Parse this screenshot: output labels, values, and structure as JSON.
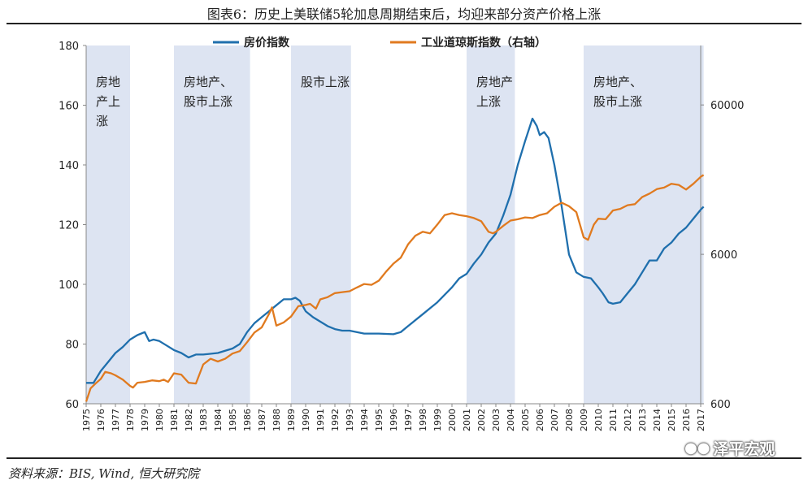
{
  "title": "图表6：历史上美联储5轮加息周期结束后，均迎来部分资产价格上涨",
  "source": "资料来源：BIS, Wind, 恒大研究院",
  "watermark": "泽平宏观",
  "watermark_icon": "wechat-icon",
  "colors": {
    "house": "#1f6fad",
    "dow": "#e07a1f",
    "band": "#dde4f2"
  },
  "chart_data": {
    "type": "line",
    "legend": [
      "房价指数",
      "工业道琼斯指数（右轴）"
    ],
    "legend_position": "top",
    "grid": false,
    "x_ticks": [
      "1975",
      "1976",
      "1977",
      "1978",
      "1979",
      "1980",
      "1981",
      "1982",
      "1983",
      "1984",
      "1985",
      "1986",
      "1987",
      "1988",
      "1989",
      "1990",
      "1991",
      "1992",
      "1993",
      "1994",
      "1995",
      "1996",
      "1997",
      "1998",
      "1999",
      "2000",
      "2001",
      "2002",
      "2003",
      "2004",
      "2005",
      "2006",
      "2007",
      "2008",
      "2009",
      "2010",
      "2011",
      "2012",
      "2013",
      "2014",
      "2015",
      "2016",
      "2017"
    ],
    "xlim": [
      1975,
      2017
    ],
    "left_axis": {
      "ticks": [
        "60",
        "80",
        "100",
        "120",
        "140",
        "160",
        "180"
      ],
      "ylim": [
        60,
        180
      ]
    },
    "right_axis": {
      "scale": "log",
      "ticks": [
        "600",
        "6000",
        "60000"
      ],
      "ylim": [
        600,
        150000
      ]
    },
    "bands": [
      {
        "start": 1975.0,
        "end": 1978.0,
        "label_lines": [
          "房地",
          "产上",
          "涨"
        ]
      },
      {
        "start": 1981.0,
        "end": 1986.2,
        "label_lines": [
          "房地产、",
          "股市上涨"
        ]
      },
      {
        "start": 1989.0,
        "end": 1993.1,
        "label_lines": [
          "股市上涨"
        ]
      },
      {
        "start": 2001.0,
        "end": 2004.3,
        "label_lines": [
          "房地产",
          "上涨"
        ]
      },
      {
        "start": 2009.0,
        "end": 2017.2,
        "label_lines": [
          "房地产、",
          "股市上涨"
        ]
      }
    ],
    "series": [
      {
        "name": "房价指数",
        "axis": "left",
        "points": [
          [
            1975.0,
            67
          ],
          [
            1975.5,
            67
          ],
          [
            1976.0,
            71
          ],
          [
            1976.5,
            74
          ],
          [
            1977.0,
            77
          ],
          [
            1977.5,
            79
          ],
          [
            1978.0,
            81.5
          ],
          [
            1978.5,
            83
          ],
          [
            1979.0,
            84
          ],
          [
            1979.3,
            81
          ],
          [
            1979.6,
            81.5
          ],
          [
            1980.0,
            81
          ],
          [
            1980.5,
            79.5
          ],
          [
            1981.0,
            78
          ],
          [
            1981.5,
            77
          ],
          [
            1982.0,
            75.5
          ],
          [
            1982.5,
            76.5
          ],
          [
            1983.0,
            76.5
          ],
          [
            1984.0,
            77
          ],
          [
            1985.0,
            78.5
          ],
          [
            1985.5,
            80
          ],
          [
            1986.0,
            84
          ],
          [
            1986.5,
            87
          ],
          [
            1987.0,
            89
          ],
          [
            1987.5,
            91
          ],
          [
            1988.0,
            93
          ],
          [
            1988.5,
            95
          ],
          [
            1989.0,
            95
          ],
          [
            1989.3,
            95.5
          ],
          [
            1989.6,
            94.5
          ],
          [
            1990.0,
            91
          ],
          [
            1990.5,
            89
          ],
          [
            1991.0,
            87.5
          ],
          [
            1991.5,
            86
          ],
          [
            1992.0,
            85
          ],
          [
            1992.5,
            84.5
          ],
          [
            1993.0,
            84.5
          ],
          [
            1994.0,
            83.5
          ],
          [
            1995.0,
            83.5
          ],
          [
            1996.0,
            83.3
          ],
          [
            1996.5,
            84
          ],
          [
            1997.0,
            86
          ],
          [
            1998.0,
            90
          ],
          [
            1999.0,
            94
          ],
          [
            2000.0,
            99
          ],
          [
            2000.5,
            102
          ],
          [
            2001.0,
            103.5
          ],
          [
            2001.5,
            107
          ],
          [
            2002.0,
            110
          ],
          [
            2002.5,
            114
          ],
          [
            2003.0,
            117
          ],
          [
            2003.5,
            123
          ],
          [
            2004.0,
            130
          ],
          [
            2004.5,
            140
          ],
          [
            2005.0,
            148
          ],
          [
            2005.5,
            155.5
          ],
          [
            2005.8,
            153
          ],
          [
            2006.0,
            150
          ],
          [
            2006.3,
            151
          ],
          [
            2006.6,
            149
          ],
          [
            2007.0,
            140
          ],
          [
            2007.5,
            126
          ],
          [
            2008.0,
            110
          ],
          [
            2008.5,
            104
          ],
          [
            2009.0,
            102.5
          ],
          [
            2009.5,
            102
          ],
          [
            2010.0,
            99
          ],
          [
            2010.3,
            97
          ],
          [
            2010.7,
            94
          ],
          [
            2011.0,
            93.5
          ],
          [
            2011.5,
            94
          ],
          [
            2012.0,
            97
          ],
          [
            2012.5,
            100
          ],
          [
            2013.0,
            104
          ],
          [
            2013.5,
            108
          ],
          [
            2014.0,
            108
          ],
          [
            2014.5,
            112
          ],
          [
            2015.0,
            114
          ],
          [
            2015.5,
            117
          ],
          [
            2016.0,
            119
          ],
          [
            2016.5,
            122
          ],
          [
            2017.0,
            125
          ],
          [
            2017.2,
            126
          ]
        ]
      },
      {
        "name": "工业道琼斯指数（右轴）",
        "axis": "right",
        "points": [
          [
            1975.0,
            620
          ],
          [
            1975.3,
            760
          ],
          [
            1975.7,
            830
          ],
          [
            1976.0,
            880
          ],
          [
            1976.3,
            980
          ],
          [
            1976.7,
            960
          ],
          [
            1977.0,
            930
          ],
          [
            1977.5,
            870
          ],
          [
            1978.0,
            790
          ],
          [
            1978.2,
            770
          ],
          [
            1978.5,
            830
          ],
          [
            1979.0,
            840
          ],
          [
            1979.5,
            860
          ],
          [
            1980.0,
            850
          ],
          [
            1980.3,
            870
          ],
          [
            1980.6,
            840
          ],
          [
            1981.0,
            960
          ],
          [
            1981.5,
            940
          ],
          [
            1982.0,
            830
          ],
          [
            1982.5,
            820
          ],
          [
            1983.0,
            1100
          ],
          [
            1983.5,
            1200
          ],
          [
            1984.0,
            1150
          ],
          [
            1984.5,
            1200
          ],
          [
            1985.0,
            1300
          ],
          [
            1985.5,
            1350
          ],
          [
            1986.0,
            1550
          ],
          [
            1986.5,
            1800
          ],
          [
            1987.0,
            1950
          ],
          [
            1987.5,
            2400
          ],
          [
            1987.7,
            2650
          ],
          [
            1988.0,
            2000
          ],
          [
            1988.5,
            2100
          ],
          [
            1989.0,
            2300
          ],
          [
            1989.5,
            2700
          ],
          [
            1990.0,
            2750
          ],
          [
            1990.3,
            2800
          ],
          [
            1990.7,
            2600
          ],
          [
            1991.0,
            3000
          ],
          [
            1991.5,
            3100
          ],
          [
            1992.0,
            3300
          ],
          [
            1992.5,
            3350
          ],
          [
            1993.0,
            3400
          ],
          [
            1993.5,
            3600
          ],
          [
            1994.0,
            3800
          ],
          [
            1994.5,
            3750
          ],
          [
            1995.0,
            4000
          ],
          [
            1995.5,
            4600
          ],
          [
            1996.0,
            5200
          ],
          [
            1996.5,
            5700
          ],
          [
            1997.0,
            7000
          ],
          [
            1997.5,
            8000
          ],
          [
            1998.0,
            8500
          ],
          [
            1998.5,
            8300
          ],
          [
            1999.0,
            9500
          ],
          [
            1999.5,
            11000
          ],
          [
            2000.0,
            11300
          ],
          [
            2000.5,
            11000
          ],
          [
            2001.0,
            10800
          ],
          [
            2001.5,
            10500
          ],
          [
            2002.0,
            10000
          ],
          [
            2002.5,
            8500
          ],
          [
            2002.8,
            8300
          ],
          [
            2003.0,
            8500
          ],
          [
            2003.5,
            9300
          ],
          [
            2004.0,
            10100
          ],
          [
            2004.5,
            10300
          ],
          [
            2005.0,
            10600
          ],
          [
            2005.5,
            10500
          ],
          [
            2006.0,
            11000
          ],
          [
            2006.5,
            11300
          ],
          [
            2007.0,
            12500
          ],
          [
            2007.5,
            13300
          ],
          [
            2008.0,
            12600
          ],
          [
            2008.5,
            11500
          ],
          [
            2009.0,
            7800
          ],
          [
            2009.3,
            7500
          ],
          [
            2009.7,
            9500
          ],
          [
            2010.0,
            10400
          ],
          [
            2010.5,
            10300
          ],
          [
            2011.0,
            11800
          ],
          [
            2011.5,
            12100
          ],
          [
            2012.0,
            12800
          ],
          [
            2012.5,
            13000
          ],
          [
            2013.0,
            14500
          ],
          [
            2013.5,
            15300
          ],
          [
            2014.0,
            16400
          ],
          [
            2014.5,
            16800
          ],
          [
            2015.0,
            17800
          ],
          [
            2015.5,
            17500
          ],
          [
            2016.0,
            16300
          ],
          [
            2016.5,
            17800
          ],
          [
            2017.0,
            19800
          ],
          [
            2017.2,
            20400
          ]
        ]
      }
    ]
  }
}
